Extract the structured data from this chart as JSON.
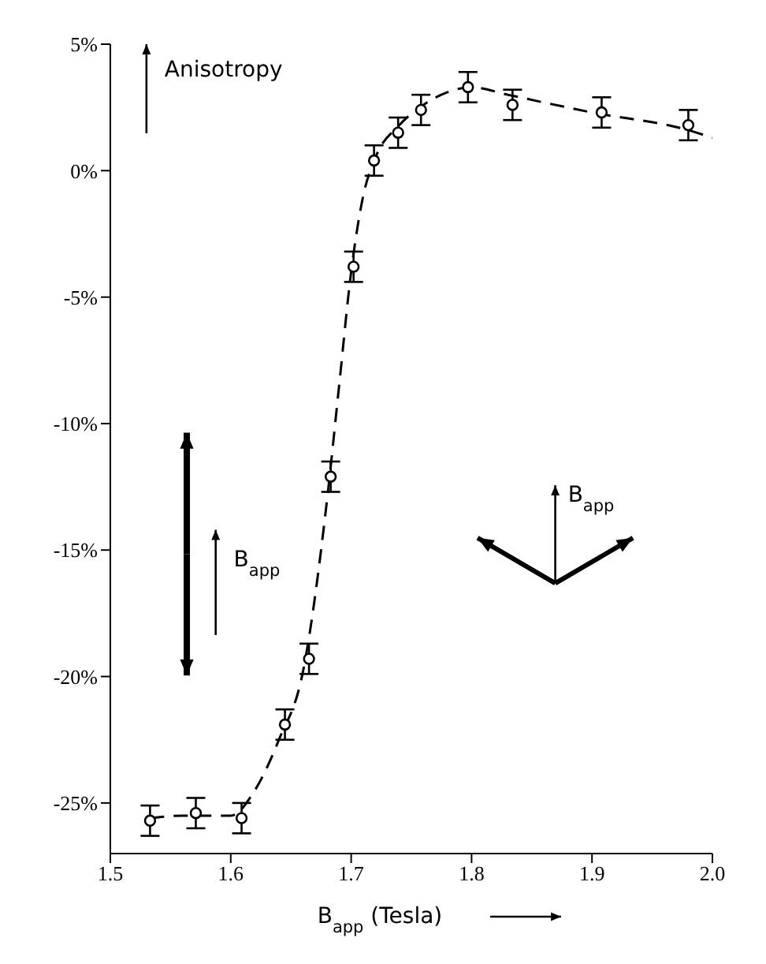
{
  "chart_data": {
    "type": "scatter",
    "xlabel": "B$_{app}$ (Tesla)",
    "xlim": [
      1.5,
      2.0
    ],
    "xticks": [
      1.5,
      1.6,
      1.7,
      1.8,
      1.9,
      {
        "value": 2.0,
        "label": "2.0"
      }
    ],
    "ylim": [
      -27,
      5
    ],
    "yticks": [
      {
        "value": 5,
        "label": "5%"
      },
      {
        "value": 0,
        "label": "0%"
      },
      {
        "value": -5,
        "label": "-5%"
      },
      {
        "value": -10,
        "label": "-10%"
      },
      {
        "value": -15,
        "label": "-15%"
      },
      {
        "value": -20,
        "label": "-20%"
      },
      {
        "value": -25,
        "label": "-25%"
      }
    ],
    "annotations": [
      "Anisotropy",
      "B$_{app}$",
      "B$_{app}$"
    ],
    "series": [
      {
        "type": "scatter",
        "color": "#000000",
        "marker": "circle",
        "x": [
          1.533,
          1.571,
          1.609,
          1.645,
          1.665,
          1.683,
          1.702,
          1.719,
          1.739,
          1.758,
          1.797,
          1.834,
          1.908,
          1.98
        ],
        "values": [
          -25.7,
          -25.4,
          -25.6,
          -21.9,
          -19.3,
          -12.1,
          -3.8,
          0.4,
          1.5,
          2.4,
          3.3,
          2.6,
          2.3,
          1.8
        ],
        "errors": [
          0.6,
          0.6,
          0.6,
          0.6,
          0.6,
          0.6,
          0.6,
          0.6,
          0.6,
          0.6,
          0.6,
          0.6,
          0.6,
          0.6
        ]
      },
      {
        "type": "line",
        "color": "#000000",
        "line_style": "dashed",
        "marker": "none",
        "x": [
          1.533,
          1.56,
          1.6,
          1.62,
          1.64,
          1.66,
          1.68,
          1.69,
          1.7,
          1.71,
          1.72,
          1.74,
          1.76,
          1.78,
          1.8,
          1.83,
          1.9,
          1.98,
          2.0
        ],
        "values": [
          -25.6,
          -25.5,
          -25.5,
          -24.5,
          -22.5,
          -19.8,
          -13,
          -8.5,
          -4,
          -1,
          0.5,
          1.8,
          2.6,
          3.1,
          3.3,
          3.0,
          2.3,
          1.6,
          1.3
        ]
      }
    ]
  }
}
